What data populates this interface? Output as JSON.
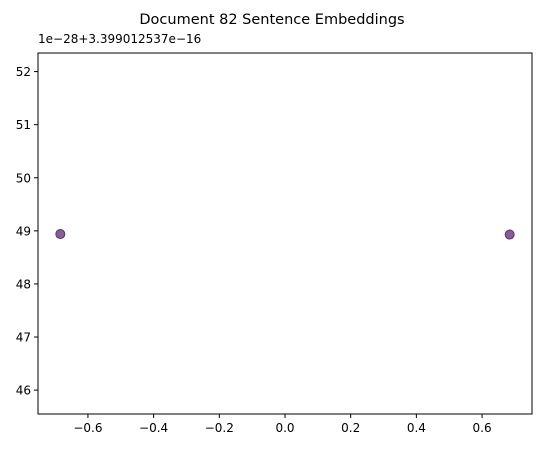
{
  "chart_data": {
    "type": "scatter",
    "title": "Document 82 Sentence Embeddings",
    "xlabel": "",
    "ylabel": "",
    "y_offset_label": "1e−28+3.399012537e−16",
    "xlim": [
      -0.752,
      0.752
    ],
    "ylim": [
      45.55,
      52.35
    ],
    "x_ticks": [
      -0.6,
      -0.4,
      -0.2,
      0.0,
      0.2,
      0.4,
      0.6
    ],
    "x_tick_labels": [
      "−0.6",
      "−0.4",
      "−0.2",
      "0.0",
      "0.2",
      "0.4",
      "0.6"
    ],
    "y_ticks": [
      46,
      47,
      48,
      49,
      50,
      51,
      52
    ],
    "y_tick_labels": [
      "46",
      "47",
      "48",
      "49",
      "50",
      "51",
      "52"
    ],
    "grid": false,
    "points": [
      {
        "x": -0.684,
        "y": 48.94
      },
      {
        "x": 0.684,
        "y": 48.93
      }
    ],
    "colors": {
      "point_fill": "#7b4a8c",
      "point_edge": "#5d2f6e",
      "axis": "#000000"
    }
  }
}
